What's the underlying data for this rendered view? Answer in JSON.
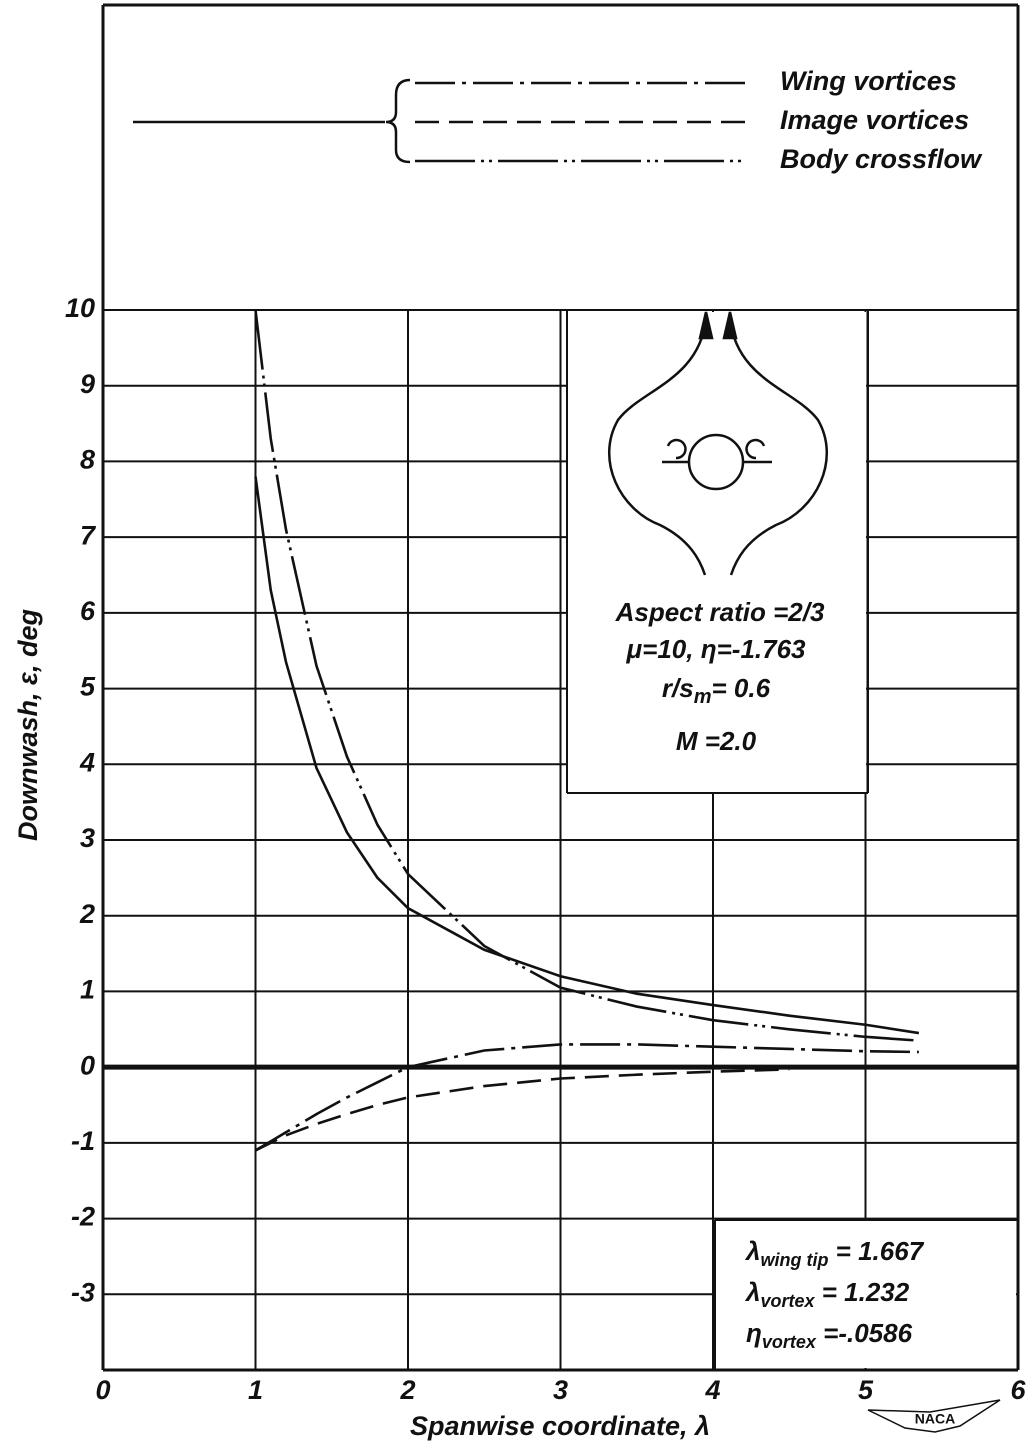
{
  "chart_data": {
    "type": "line",
    "xlabel": "Spanwise coordinate, λ",
    "ylabel": "Downwash, ε, deg",
    "xlim": [
      0,
      6
    ],
    "xticks": [
      0,
      1,
      2,
      3,
      4,
      5,
      6
    ],
    "ylim": [
      -4,
      10
    ],
    "yticks": [
      -3,
      -2,
      -1,
      0,
      1,
      2,
      3,
      4,
      5,
      6,
      7,
      8,
      9,
      10
    ],
    "grid": true,
    "x": [
      1,
      1.1,
      1.2,
      1.4,
      1.6,
      1.8,
      2,
      2.5,
      3,
      3.5,
      4,
      4.5,
      5,
      5.35
    ],
    "series": [
      {
        "color": "#111111",
        "style": "solid",
        "values": [
          7.8,
          6.3,
          5.35,
          3.95,
          3.1,
          2.5,
          2.1,
          1.55,
          1.2,
          0.97,
          0.82,
          0.68,
          0.56,
          0.45
        ]
      },
      {
        "name": "Wing vortices",
        "color": "#111111",
        "style": "dashdot",
        "values": [
          -1.1,
          -0.98,
          -0.86,
          -0.62,
          -0.4,
          -0.2,
          0,
          0.22,
          0.3,
          0.3,
          0.27,
          0.24,
          0.21,
          0.2
        ]
      },
      {
        "name": "Image vortices",
        "color": "#111111",
        "style": "dashed",
        "values": [
          -1.1,
          -1.0,
          -0.9,
          -0.75,
          -0.62,
          -0.5,
          -0.4,
          -0.25,
          -0.15,
          -0.1,
          -0.06,
          -0.03,
          null,
          null
        ]
      },
      {
        "name": "Body crossflow",
        "color": "#111111",
        "style": "dashdotdot",
        "values": [
          10,
          8.3,
          7.1,
          5.3,
          4.1,
          3.2,
          2.55,
          1.6,
          1.05,
          0.8,
          0.62,
          0.5,
          0.4,
          0.35
        ]
      }
    ],
    "notes": [
      "Aspect ratio =2/3",
      "μ=10,  η=-1.763"
    ],
    "ratio": {
      "main": "r/s",
      "sub": "m",
      "rest": "= 0.6"
    },
    "mach": "M =2.0",
    "params": [
      {
        "main": "λ",
        "sub": "wing tip",
        "rest": " =  1.667"
      },
      {
        "main": "λ",
        "sub": "vortex",
        "rest": "  =  1.232"
      },
      {
        "main": "η",
        "sub": "vortex",
        "rest": "  =-.0586"
      }
    ],
    "logo": "NACA"
  }
}
